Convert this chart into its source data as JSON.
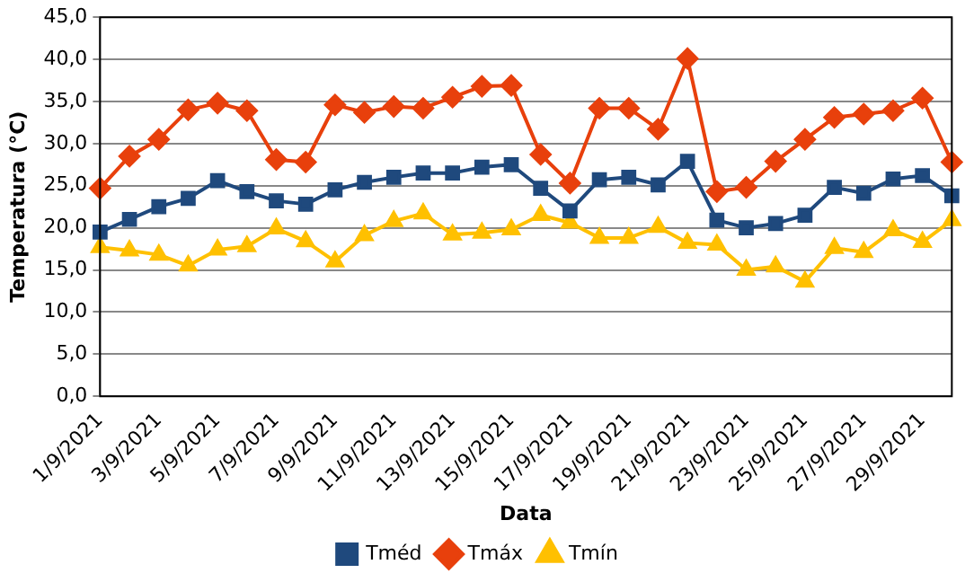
{
  "chart_data": {
    "type": "line",
    "xlabel": "Data",
    "ylabel": "Temperatura (°C)",
    "categories": [
      "1/9/2021",
      null,
      "3/9/2021",
      null,
      "5/9/2021",
      null,
      "7/9/2021",
      null,
      "9/9/2021",
      null,
      "11/9/2021",
      null,
      "13/9/2021",
      null,
      "15/9/2021",
      null,
      "17/9/2021",
      null,
      "19/9/2021",
      null,
      "21/9/2021",
      null,
      "23/9/2021",
      null,
      "25/9/2021",
      null,
      "27/9/2021",
      null,
      "29/9/2021",
      null
    ],
    "series": [
      {
        "name": "Tméd",
        "color": "#1f497d",
        "marker": "square",
        "values": [
          19.5,
          21,
          22.5,
          23.5,
          25.6,
          24.3,
          23.2,
          22.8,
          24.5,
          25.4,
          26,
          26.5,
          26.5,
          27.2,
          27.5,
          24.7,
          22,
          25.7,
          26,
          25.1,
          27.9,
          20.9,
          20,
          20.5,
          21.5,
          24.8,
          24.1,
          25.8,
          26.2,
          23.8
        ]
      },
      {
        "name": "Tmáx",
        "color": "#e8400c",
        "marker": "diamond",
        "values": [
          24.7,
          28.5,
          30.5,
          34,
          34.8,
          33.9,
          28.1,
          27.8,
          34.6,
          33.7,
          34.4,
          34.2,
          35.5,
          36.8,
          36.9,
          28.7,
          25.3,
          34.2,
          34.2,
          31.7,
          40.1,
          24.3,
          24.8,
          27.9,
          30.5,
          33.1,
          33.5,
          33.9,
          35.4,
          27.8
        ]
      },
      {
        "name": "Tmín",
        "color": "#ffc000",
        "marker": "triangle",
        "values": [
          17.7,
          17.3,
          16.8,
          15.5,
          17.4,
          17.8,
          19.9,
          18.4,
          16.0,
          19.1,
          20.8,
          21.7,
          19.2,
          19.4,
          19.8,
          21.5,
          20.6,
          18.8,
          18.8,
          20.1,
          18.2,
          18.0,
          15.0,
          15.4,
          13.6,
          17.6,
          17.1,
          19.7,
          18.3,
          20.9
        ]
      }
    ],
    "ylim": [
      0,
      45
    ],
    "yticks": [
      {
        "value": 0,
        "label": "0,0"
      },
      {
        "value": 5,
        "label": "5,0"
      },
      {
        "value": 10,
        "label": "10,0"
      },
      {
        "value": 15,
        "label": "15,0"
      },
      {
        "value": 20,
        "label": "20,0"
      },
      {
        "value": 25,
        "label": "25,0"
      },
      {
        "value": 30,
        "label": "30,0"
      },
      {
        "value": 35,
        "label": "35,0"
      },
      {
        "value": 40,
        "label": "40,0"
      },
      {
        "value": 45,
        "label": "45,0"
      }
    ],
    "grid": "y",
    "legend": "bottom",
    "line_style": "solid"
  }
}
